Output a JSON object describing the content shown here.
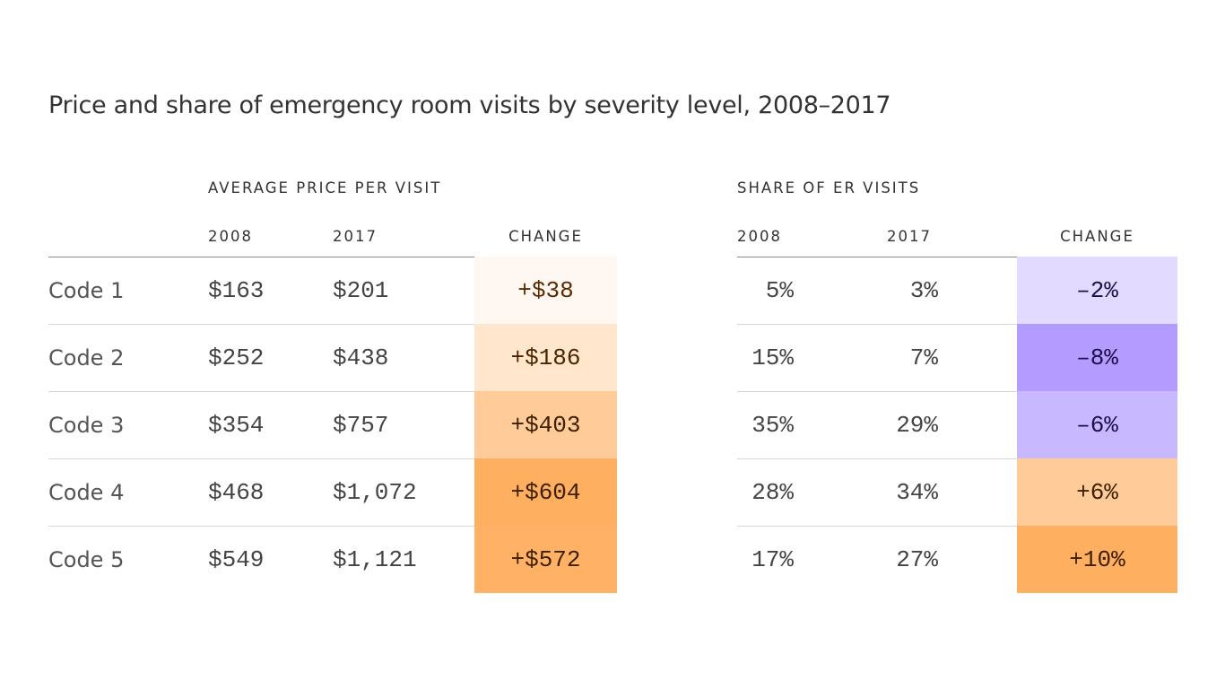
{
  "title": "Price and share of emergency room visits by severity level, 2008–2017",
  "chart_data": [
    {
      "type": "table",
      "section_title": "AVERAGE PRICE PER VISIT",
      "columns": [
        "2008",
        "2017",
        "CHANGE"
      ],
      "rows": [
        {
          "label": "Code 1",
          "y2008": "$163",
          "y2017": "$201",
          "change": "+$38",
          "color": "#fff8f2",
          "text_color": "#5c2a00"
        },
        {
          "label": "Code 2",
          "y2008": "$252",
          "y2017": "$438",
          "change": "+$186",
          "color": "#ffe6cc",
          "text_color": "#4a2600"
        },
        {
          "label": "Code 3",
          "y2008": "$354",
          "y2017": "$757",
          "change": "+$403",
          "color": "#ffcb99",
          "text_color": "#3d2000"
        },
        {
          "label": "Code 4",
          "y2008": "$468",
          "y2017": "$1,072",
          "change": "+$604",
          "color": "#ffaf60",
          "text_color": "#3d2000"
        },
        {
          "label": "Code 5",
          "y2008": "$549",
          "y2017": "$1,121",
          "change": "+$572",
          "color": "#ffb266",
          "text_color": "#3d2000"
        }
      ]
    },
    {
      "type": "table",
      "section_title": "SHARE OF ER VISITS",
      "columns": [
        "2008",
        "2017",
        "CHANGE"
      ],
      "rows": [
        {
          "y2008": "5%",
          "y2017": "3%",
          "change": "–2%",
          "color": "#e2dbff",
          "text_color": "#1c0f4a"
        },
        {
          "y2008": "15%",
          "y2017": "7%",
          "change": "–8%",
          "color": "#b39bff",
          "text_color": "#1c0f4a"
        },
        {
          "y2008": "35%",
          "y2017": "29%",
          "change": "–6%",
          "color": "#c8b8ff",
          "text_color": "#1c0f4a"
        },
        {
          "y2008": "28%",
          "y2017": "34%",
          "change": "+6%",
          "color": "#ffcc99",
          "text_color": "#3d2000"
        },
        {
          "y2008": "17%",
          "y2017": "27%",
          "change": "+10%",
          "color": "#ffaf60",
          "text_color": "#3d2000"
        }
      ]
    }
  ]
}
